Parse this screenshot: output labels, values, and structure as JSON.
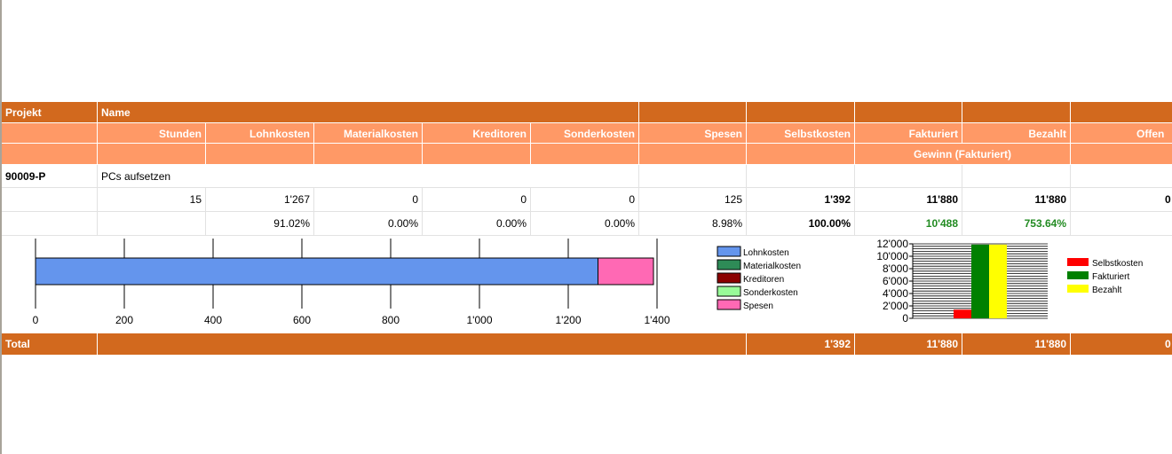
{
  "header": {
    "projekt_label": "Projekt",
    "name_label": "Name",
    "columns": {
      "stunden": "Stunden",
      "lohnkosten": "Lohnkosten",
      "materialkosten": "Materialkosten",
      "kreditoren": "Kreditoren",
      "sonderkosten": "Sonderkosten",
      "spesen": "Spesen",
      "selbstkosten": "Selbstkosten",
      "fakturiert": "Fakturiert",
      "bezahlt": "Bezahlt",
      "offen": "Offen"
    },
    "gewinn_label": "Gewinn (Fakturiert)"
  },
  "project": {
    "number": "90009-P",
    "name": "PCs aufsetzen",
    "values": {
      "stunden": "15",
      "lohnkosten": "1'267",
      "materialkosten": "0",
      "kreditoren": "0",
      "sonderkosten": "0",
      "spesen": "125",
      "selbstkosten": "1'392",
      "fakturiert": "11'880",
      "bezahlt": "11'880",
      "offen": "0"
    },
    "percents": {
      "lohnkosten": "91.02%",
      "materialkosten": "0.00%",
      "kreditoren": "0.00%",
      "sonderkosten": "0.00%",
      "spesen": "8.98%",
      "selbstkosten": "100.00%",
      "gewinn": "10'488",
      "gewinn_pct": "753.64%"
    }
  },
  "total": {
    "label": "Total",
    "selbstkosten": "1'392",
    "fakturiert": "11'880",
    "bezahlt": "11'880",
    "offen": "0"
  },
  "colors": {
    "header_dark": "#d2691e",
    "header_light": "#ff9966",
    "gewinn_green": "#228b22"
  },
  "chart_data": [
    {
      "type": "bar",
      "orientation": "horizontal-stacked",
      "series": [
        {
          "name": "Lohnkosten",
          "values": [
            1267
          ],
          "color": "#6495ed"
        },
        {
          "name": "Materialkosten",
          "values": [
            0
          ],
          "color": "#2e8b57"
        },
        {
          "name": "Kreditoren",
          "values": [
            0
          ],
          "color": "#8b0000"
        },
        {
          "name": "Sonderkosten",
          "values": [
            0
          ],
          "color": "#98fb98"
        },
        {
          "name": "Spesen",
          "values": [
            125
          ],
          "color": "#ff69b4"
        }
      ],
      "ticks": [
        "0",
        "200",
        "400",
        "600",
        "800",
        "1'000",
        "1'200",
        "1'400"
      ],
      "xlim": [
        0,
        1400
      ],
      "legend": "right"
    },
    {
      "type": "bar",
      "categories": [
        "Selbstkosten",
        "Fakturiert",
        "Bezahlt"
      ],
      "values": [
        1392,
        11880,
        11880
      ],
      "colors": [
        "#ff0000",
        "#008000",
        "#ffff00"
      ],
      "ticks": [
        "0",
        "2'000",
        "4'000",
        "6'000",
        "8'000",
        "10'000",
        "12'000"
      ],
      "ylim": [
        0,
        12000
      ],
      "legend": "right"
    }
  ]
}
